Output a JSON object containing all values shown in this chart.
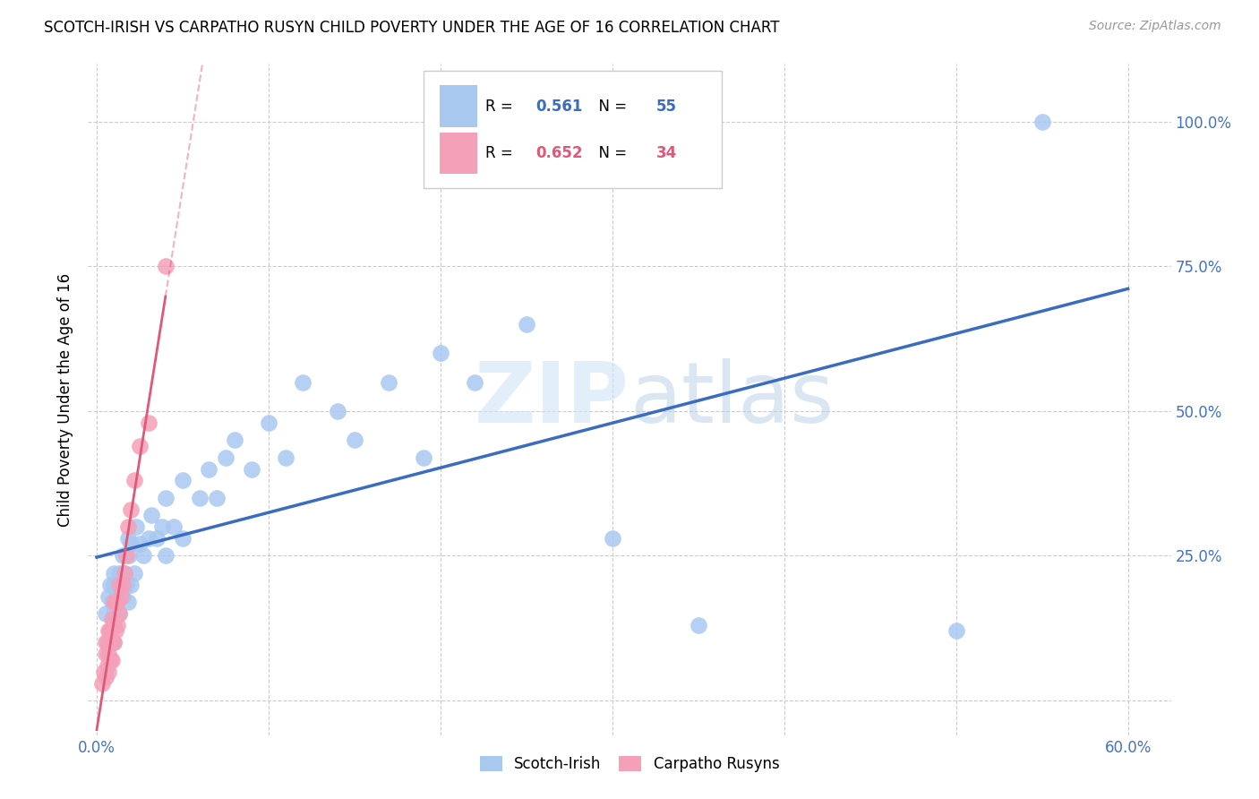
{
  "title": "SCOTCH-IRISH VS CARPATHO RUSYN CHILD POVERTY UNDER THE AGE OF 16 CORRELATION CHART",
  "source": "Source: ZipAtlas.com",
  "ylabel": "Child Poverty Under the Age of 16",
  "scotch_irish_R": 0.561,
  "scotch_irish_N": 55,
  "carpatho_rusyn_R": 0.652,
  "carpatho_rusyn_N": 34,
  "scotch_irish_color": "#a8c8f0",
  "scotch_irish_line_color": "#3a6cbf",
  "carpatho_rusyn_color": "#f4a0b8",
  "carpatho_rusyn_line_color": "#e05878",
  "watermark_zip": "ZIP",
  "watermark_atlas": "atlas",
  "x_tick_positions": [
    0.0,
    0.1,
    0.2,
    0.3,
    0.4,
    0.5,
    0.6
  ],
  "x_tick_labels": [
    "0.0%",
    "",
    "",
    "",
    "",
    "",
    "60.0%"
  ],
  "y_tick_positions": [
    0.0,
    0.25,
    0.5,
    0.75,
    1.0
  ],
  "y_tick_labels": [
    "",
    "25.0%",
    "50.0%",
    "75.0%",
    "100.0%"
  ],
  "scotch_irish_x": [
    0.005,
    0.007,
    0.008,
    0.008,
    0.009,
    0.01,
    0.01,
    0.01,
    0.01,
    0.012,
    0.013,
    0.013,
    0.014,
    0.015,
    0.015,
    0.016,
    0.017,
    0.018,
    0.018,
    0.019,
    0.02,
    0.02,
    0.022,
    0.023,
    0.025,
    0.027,
    0.03,
    0.032,
    0.035,
    0.038,
    0.04,
    0.04,
    0.045,
    0.05,
    0.05,
    0.06,
    0.065,
    0.07,
    0.075,
    0.08,
    0.09,
    0.1,
    0.11,
    0.12,
    0.14,
    0.15,
    0.17,
    0.19,
    0.2,
    0.22,
    0.25,
    0.3,
    0.35,
    0.5,
    0.55
  ],
  "scotch_irish_y": [
    0.15,
    0.18,
    0.12,
    0.2,
    0.17,
    0.1,
    0.15,
    0.2,
    0.22,
    0.18,
    0.15,
    0.22,
    0.2,
    0.18,
    0.25,
    0.22,
    0.2,
    0.17,
    0.28,
    0.25,
    0.2,
    0.27,
    0.22,
    0.3,
    0.27,
    0.25,
    0.28,
    0.32,
    0.28,
    0.3,
    0.25,
    0.35,
    0.3,
    0.28,
    0.38,
    0.35,
    0.4,
    0.35,
    0.42,
    0.45,
    0.4,
    0.48,
    0.42,
    0.55,
    0.5,
    0.45,
    0.55,
    0.42,
    0.6,
    0.55,
    0.65,
    0.28,
    0.13,
    0.12,
    1.0
  ],
  "carpatho_rusyn_x": [
    0.003,
    0.004,
    0.005,
    0.005,
    0.005,
    0.006,
    0.006,
    0.007,
    0.007,
    0.007,
    0.008,
    0.008,
    0.009,
    0.009,
    0.009,
    0.01,
    0.01,
    0.01,
    0.011,
    0.011,
    0.012,
    0.012,
    0.013,
    0.013,
    0.014,
    0.015,
    0.016,
    0.017,
    0.018,
    0.02,
    0.022,
    0.025,
    0.03,
    0.04
  ],
  "carpatho_rusyn_y": [
    0.03,
    0.05,
    0.04,
    0.08,
    0.1,
    0.06,
    0.1,
    0.05,
    0.08,
    0.12,
    0.07,
    0.12,
    0.07,
    0.1,
    0.14,
    0.1,
    0.13,
    0.17,
    0.12,
    0.17,
    0.13,
    0.17,
    0.15,
    0.2,
    0.18,
    0.2,
    0.22,
    0.25,
    0.3,
    0.33,
    0.38,
    0.44,
    0.48,
    0.75
  ]
}
